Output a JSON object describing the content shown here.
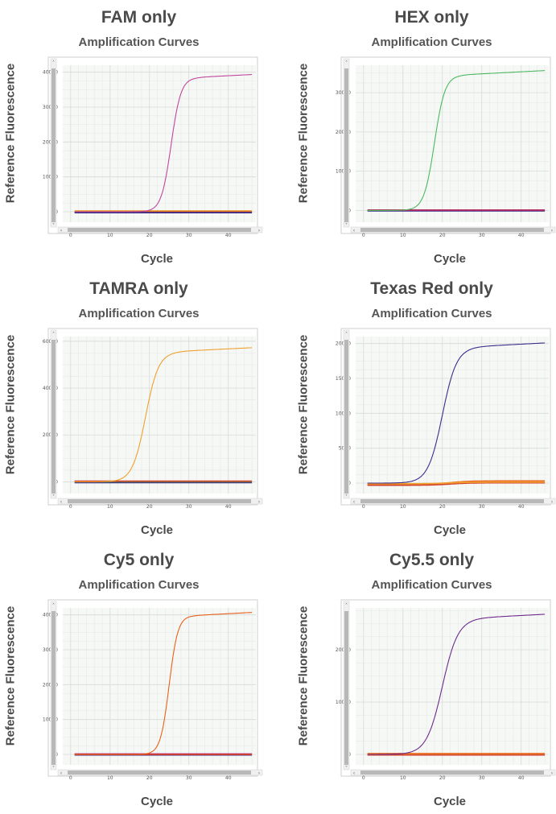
{
  "chart_data": [
    {
      "type": "line",
      "title": "FAM only",
      "subtitle": "Amplification Curves",
      "xlabel": "Cycle",
      "ylabel": "Reference Fluorescence",
      "xlim": [
        -2,
        47
      ],
      "ylim": [
        -3000,
        42000
      ],
      "xticks": [
        0,
        10,
        20,
        30,
        40
      ],
      "yticks": [
        0,
        10000,
        20000,
        30000,
        40000
      ],
      "series": [
        {
          "color": "#c0479c",
          "amplified": true,
          "baseline": 0,
          "plateau": 38500,
          "midpoint": 25.5,
          "slope": 0.8
        },
        {
          "color": "#e88a1a",
          "amplified": false,
          "baseline": 200
        },
        {
          "color": "#d2402a",
          "amplified": false,
          "baseline": -150
        },
        {
          "color": "#3a2d8c",
          "amplified": false,
          "baseline": -250
        }
      ]
    },
    {
      "type": "line",
      "title": "HEX only",
      "subtitle": "Amplification Curves",
      "xlabel": "Cycle",
      "ylabel": "Reference Fluorescence",
      "xlim": [
        -2,
        47
      ],
      "ylim": [
        -3000,
        37000
      ],
      "xticks": [
        0,
        10,
        20,
        30,
        40
      ],
      "yticks": [
        0,
        10000,
        20000,
        30000
      ],
      "series": [
        {
          "color": "#4db860",
          "amplified": true,
          "baseline": 0,
          "plateau": 34500,
          "midpoint": 18,
          "slope": 0.75
        },
        {
          "color": "#d2402a",
          "amplified": false,
          "baseline": 100
        },
        {
          "color": "#3a2d8c",
          "amplified": false,
          "baseline": -100
        },
        {
          "color": "#a8286e",
          "amplified": false,
          "baseline": 50
        }
      ]
    },
    {
      "type": "line",
      "title": "TAMRA only",
      "subtitle": "Amplification Curves",
      "xlabel": "Cycle",
      "ylabel": "Reference Fluorescence",
      "xlim": [
        -2,
        47
      ],
      "ylim": [
        -5000,
        62000
      ],
      "xticks": [
        0,
        10,
        20,
        30,
        40
      ],
      "yticks": [
        0,
        20000,
        40000,
        60000
      ],
      "series": [
        {
          "color": "#f0a030",
          "amplified": true,
          "baseline": 0,
          "plateau": 55500,
          "midpoint": 19,
          "slope": 0.6
        },
        {
          "color": "#3a2d8c",
          "amplified": false,
          "baseline": -300
        },
        {
          "color": "#3c9b4a",
          "amplified": false,
          "baseline": 100
        },
        {
          "color": "#d2402a",
          "amplified": false,
          "baseline": 300
        }
      ]
    },
    {
      "type": "line",
      "title": "Texas Red only",
      "subtitle": "Amplification Curves",
      "xlabel": "Cycle",
      "ylabel": "Reference Fluorescence",
      "xlim": [
        -2,
        47
      ],
      "ylim": [
        -1500,
        21000
      ],
      "xticks": [
        0,
        10,
        20,
        30,
        40
      ],
      "yticks": [
        0,
        5000,
        10000,
        15000,
        20000
      ],
      "series": [
        {
          "color": "#3a2d8c",
          "amplified": true,
          "baseline": 0,
          "plateau": 19500,
          "midpoint": 20,
          "slope": 0.55
        },
        {
          "color": "#e8601a",
          "amplified": false,
          "baseline": -200,
          "drift": 500
        },
        {
          "color": "#d2402a",
          "amplified": false,
          "baseline": -300,
          "drift": 350
        },
        {
          "color": "#f0a030",
          "amplified": false,
          "baseline": -100,
          "drift": 250
        }
      ]
    },
    {
      "type": "line",
      "title": "Cy5 only",
      "subtitle": "Amplification Curves",
      "xlabel": "Cycle",
      "ylabel": "Reference Fluorescence",
      "xlim": [
        -2,
        47
      ],
      "ylim": [
        -3000,
        42000
      ],
      "xticks": [
        0,
        10,
        20,
        30,
        40
      ],
      "yticks": [
        0,
        10000,
        20000,
        30000,
        40000
      ],
      "series": [
        {
          "color": "#e8601a",
          "amplified": true,
          "baseline": 0,
          "plateau": 39800,
          "midpoint": 25,
          "slope": 0.9
        },
        {
          "color": "#3a2d8c",
          "amplified": false,
          "baseline": -150
        },
        {
          "color": "#c0479c",
          "amplified": false,
          "baseline": 150
        },
        {
          "color": "#d2402a",
          "amplified": false,
          "baseline": 0
        }
      ]
    },
    {
      "type": "line",
      "title": "Cy5.5 only",
      "subtitle": "Amplification Curves",
      "xlabel": "Cycle",
      "ylabel": "Reference Fluorescence",
      "xlim": [
        -2,
        47
      ],
      "ylim": [
        -2000,
        28000
      ],
      "xticks": [
        0,
        10,
        20,
        30,
        40
      ],
      "yticks": [
        0,
        10000,
        20000
      ],
      "series": [
        {
          "color": "#6e2a8c",
          "amplified": true,
          "baseline": 0,
          "plateau": 26000,
          "midpoint": 20,
          "slope": 0.5
        },
        {
          "color": "#e8601a",
          "amplified": false,
          "baseline": 150
        },
        {
          "color": "#f0a030",
          "amplified": false,
          "baseline": 0
        },
        {
          "color": "#d2402a",
          "amplified": false,
          "baseline": -100
        }
      ]
    }
  ]
}
